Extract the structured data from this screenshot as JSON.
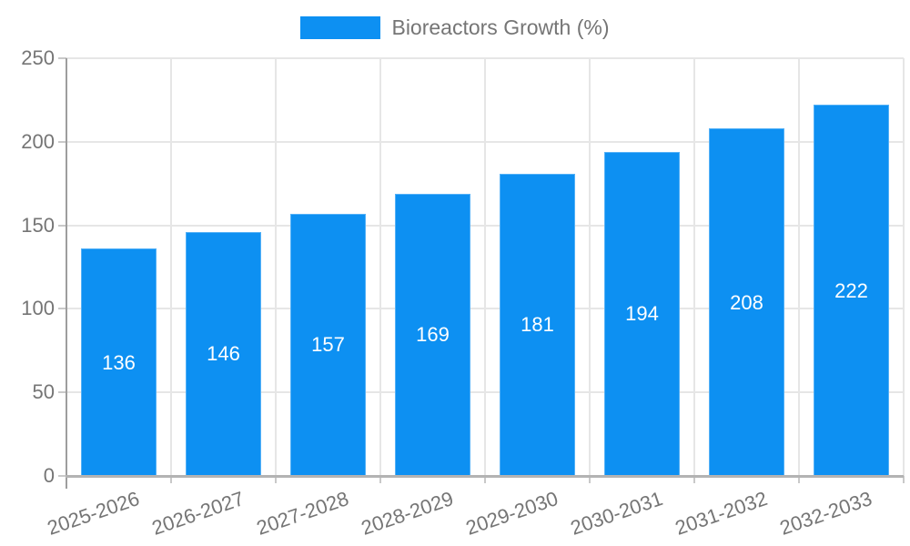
{
  "legend": {
    "series_label": "Bioreactors Growth (%)"
  },
  "chart_data": {
    "type": "bar",
    "title": "",
    "xlabel": "",
    "ylabel": "",
    "categories": [
      "2025-2026",
      "2026-2027",
      "2027-2028",
      "2028-2029",
      "2029-2030",
      "2030-2031",
      "2031-2032",
      "2032-2033"
    ],
    "values": [
      136,
      146,
      157,
      169,
      181,
      194,
      208,
      222
    ],
    "series_name": "Bioreactors Growth (%)",
    "ylim": [
      0,
      250
    ],
    "yticks": [
      0,
      50,
      100,
      150,
      200,
      250
    ],
    "grid": true,
    "legend_position": "top-center",
    "bar_labels_shown": true,
    "x_label_rotation_deg": -19
  },
  "colors": {
    "bar_fill": "#0d90f2",
    "bar_stroke": "#54b1f7",
    "bar_label_text": "#ffffff",
    "axis_text": "#757575",
    "gridline": "#e6e6e6",
    "tick": "#c9c9c9",
    "x_axis_line": "#b3b3b3",
    "y_axis_line": "#9e9e9e",
    "background": "#ffffff"
  }
}
